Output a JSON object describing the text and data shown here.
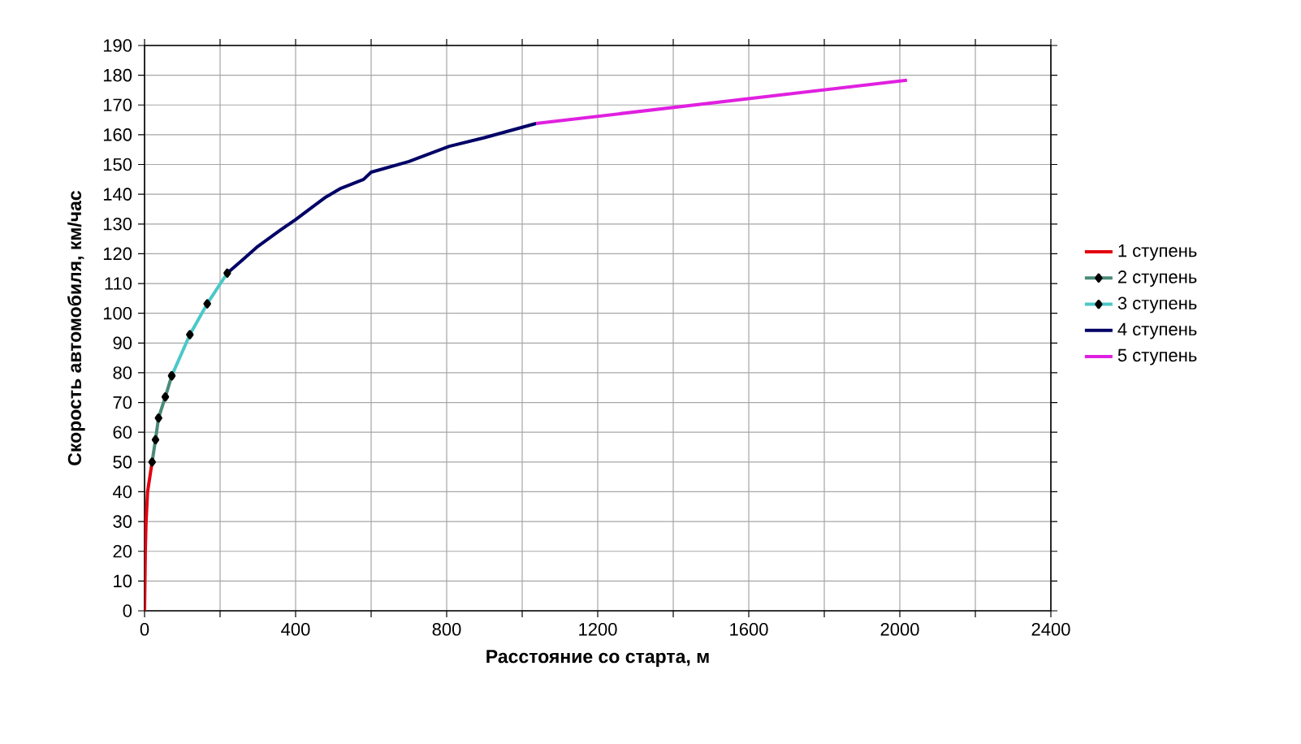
{
  "chart_data": {
    "type": "line",
    "xlabel": "Расстояние со старта, м",
    "ylabel": "Скорость автомобиля, км/час",
    "series": [
      {
        "name": "1 ступень",
        "color": "#e3000f",
        "marker": "none",
        "x": [
          0,
          1,
          2,
          4,
          8,
          20
        ],
        "values": [
          0,
          10,
          20,
          30,
          40,
          50
        ]
      },
      {
        "name": "2 ступень",
        "color": "#4a8a78",
        "marker": "diamond",
        "x": [
          20,
          29,
          37,
          55,
          72
        ],
        "values": [
          50,
          57.5,
          64.8,
          71.9,
          79
        ]
      },
      {
        "name": "3 ступень",
        "color": "#4bc8c8",
        "marker": "diamond",
        "x": [
          72,
          120,
          166,
          219
        ],
        "values": [
          79,
          92.8,
          103.2,
          113.5
        ]
      },
      {
        "name": "4 ступень",
        "color": "#000066",
        "marker": "none",
        "x": [
          219,
          260,
          300,
          360,
          400,
          477,
          520,
          580,
          600,
          700,
          807,
          900,
          1037
        ],
        "values": [
          113.5,
          118,
          122.5,
          128,
          131.5,
          138.8,
          142,
          145,
          147.4,
          151,
          156.1,
          159,
          163.8
        ]
      },
      {
        "name": "5 ступень",
        "color": "#e020e0",
        "marker": "none",
        "x": [
          1037,
          2019
        ],
        "values": [
          163.8,
          178.3
        ]
      }
    ],
    "xlim": [
      0,
      2400
    ],
    "ylim": [
      0,
      190
    ],
    "xticks": [
      0,
      {
        "value": 200,
        "label": null
      },
      400,
      {
        "value": 600,
        "label": null
      },
      800,
      {
        "value": 1000,
        "label": null
      },
      1200,
      {
        "value": 1400,
        "label": null
      },
      1600,
      {
        "value": 1800,
        "label": null
      },
      2000,
      {
        "value": 2200,
        "label": null
      },
      2400
    ],
    "yticks": [
      0,
      10,
      20,
      30,
      40,
      50,
      60,
      70,
      80,
      90,
      100,
      110,
      120,
      130,
      140,
      150,
      160,
      170,
      180,
      190
    ],
    "grid": true,
    "legend": "right",
    "line_style": "solid"
  }
}
